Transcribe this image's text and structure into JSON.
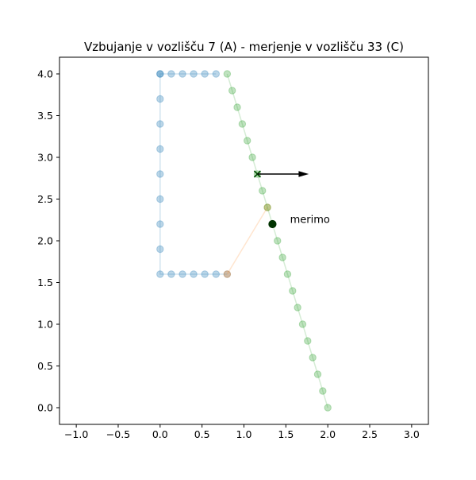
{
  "chart_data": {
    "type": "scatter",
    "title": "Vzbujanje v vozlišču 7  (A) - merjenje v vozlišču 33 (C)",
    "xlabel": "",
    "ylabel": "",
    "xlim": [
      -1.2,
      3.2
    ],
    "ylim": [
      -0.2,
      4.2
    ],
    "xticks": [
      -1.0,
      -0.5,
      0.0,
      0.5,
      1.0,
      1.5,
      2.0,
      2.5,
      3.0
    ],
    "xtick_labels": [
      "−1.0",
      "−0.5",
      "0.0",
      "0.5",
      "1.0",
      "1.5",
      "2.0",
      "2.5",
      "3.0"
    ],
    "yticks": [
      0.0,
      0.5,
      1.0,
      1.5,
      2.0,
      2.5,
      3.0,
      3.5,
      4.0
    ],
    "ytick_labels": [
      "0.0",
      "0.5",
      "1.0",
      "1.5",
      "2.0",
      "2.5",
      "3.0",
      "3.5",
      "4.0"
    ],
    "grid": false,
    "series": [
      {
        "color": "#1f77b4",
        "x": [
          0.8,
          0.667,
          0.533,
          0.4,
          0.267,
          0.133,
          0.0,
          0.0,
          0.0,
          0.0,
          0.0,
          0.0,
          0.0,
          0.0,
          0.0,
          0.0,
          0.133,
          0.267,
          0.4,
          0.533,
          0.667
        ],
        "y": [
          1.6,
          1.6,
          1.6,
          1.6,
          1.6,
          1.6,
          1.6,
          1.9,
          2.2,
          2.5,
          2.8,
          3.1,
          3.4,
          3.7,
          4.0,
          4.0,
          4.0,
          4.0,
          4.0,
          4.0,
          4.0
        ]
      },
      {
        "color": "#ff7f0e",
        "x": [
          0.8,
          1.28
        ],
        "y": [
          1.6,
          2.4
        ]
      },
      {
        "color": "#2ca02c",
        "x": [
          0.8,
          0.86,
          0.92,
          0.98,
          1.04,
          1.1,
          1.16,
          1.22,
          1.28,
          1.34,
          1.4,
          1.46,
          1.52,
          1.58,
          1.64,
          1.7,
          1.76,
          1.82,
          1.88,
          1.94,
          2.0
        ],
        "y": [
          4.0,
          3.8,
          3.6,
          3.4,
          3.2,
          3.0,
          2.8,
          2.6,
          2.4,
          2.2,
          2.0,
          1.8,
          1.6,
          1.4,
          1.2,
          1.0,
          0.8,
          0.6,
          0.4,
          0.2,
          0.0
        ]
      }
    ],
    "excitation": {
      "x": 1.16,
      "y": 2.8,
      "marker": "x",
      "color": "#004d00",
      "arrow_dx": 0.6,
      "arrow_dy": 0.0
    },
    "measurement": {
      "x": 1.34,
      "y": 2.2,
      "color": "#003300",
      "label": "merimo",
      "label_x": 1.55,
      "label_y": 2.25
    }
  }
}
